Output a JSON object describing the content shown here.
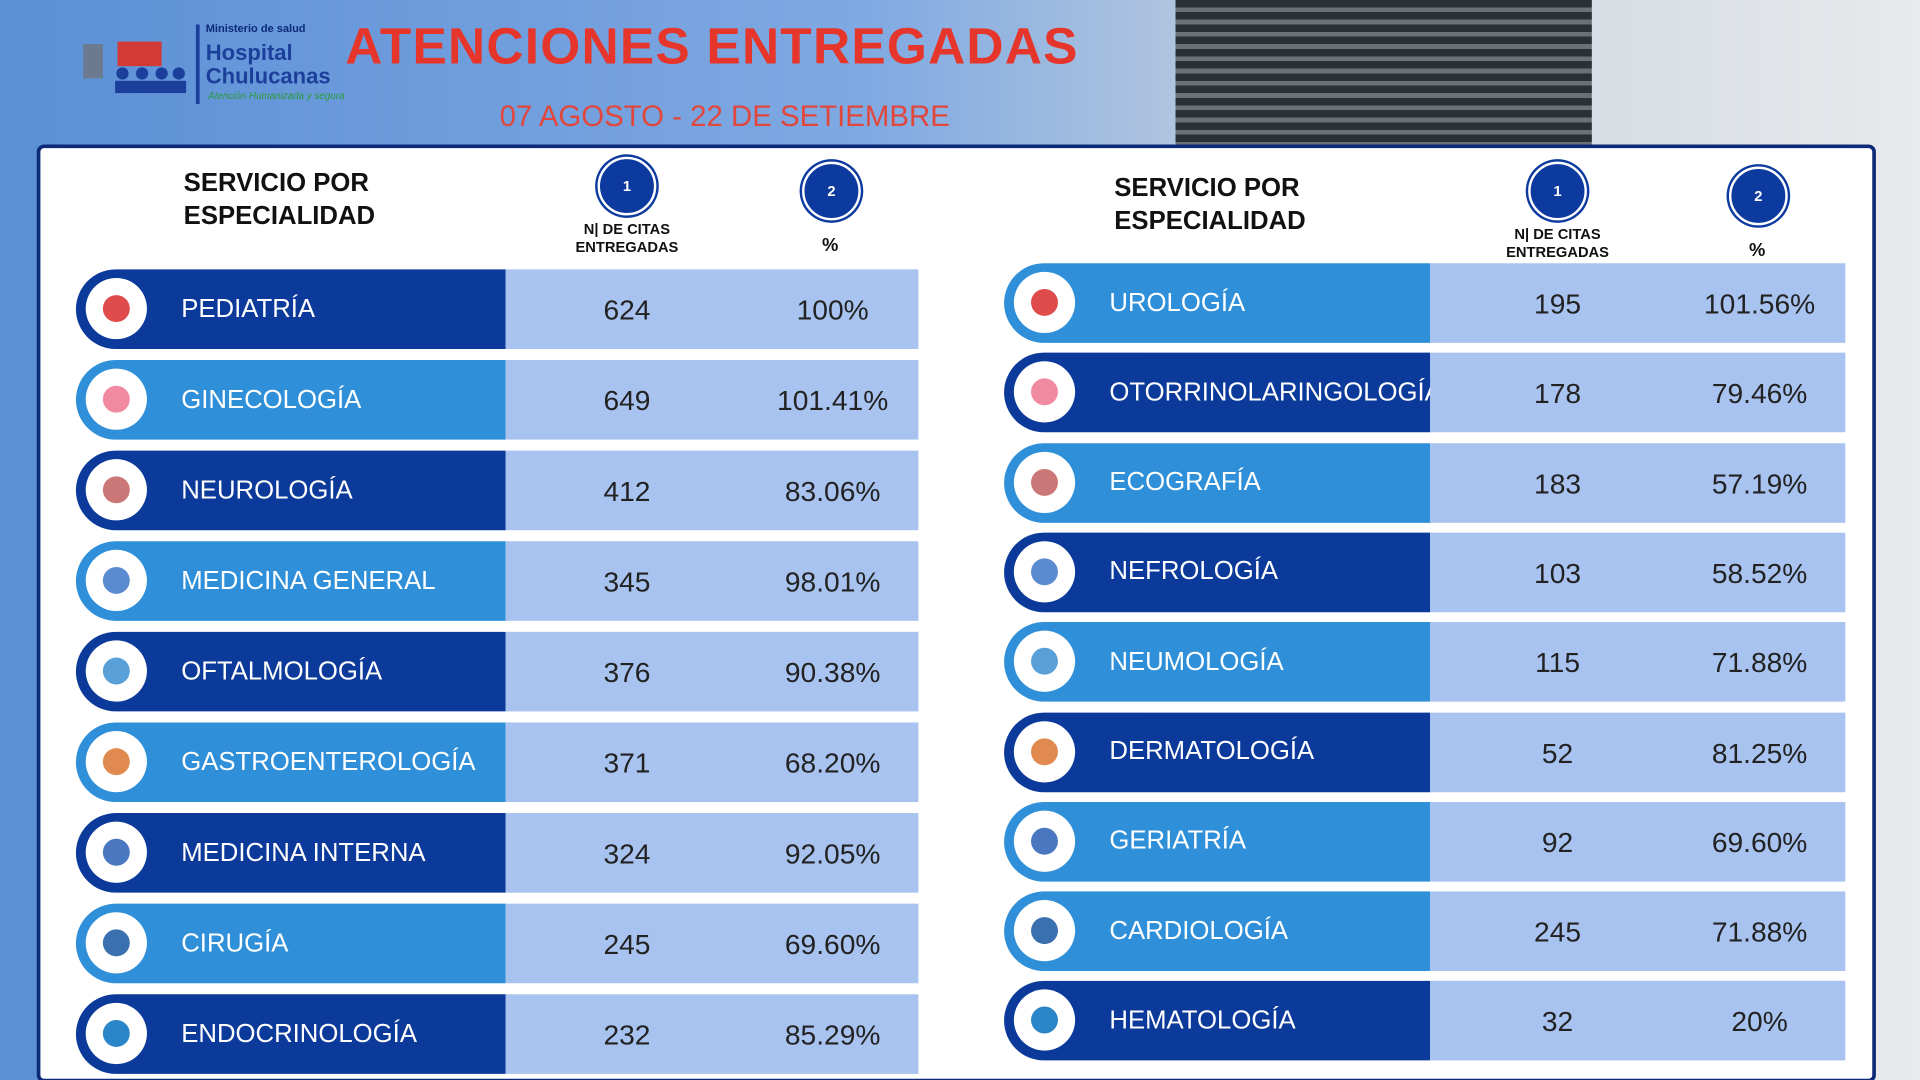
{
  "header": {
    "logo": {
      "ministry": "Ministerio de salud",
      "name_line1": "Hospital",
      "name_line2": "Chulucanas",
      "tagline": "Atención Humanizada y segura"
    },
    "title": "ATENCIONES ENTREGADAS",
    "subtitle": "07 AGOSTO - 22 DE SETIEMBRE"
  },
  "tables": [
    {
      "header": {
        "service": "SERVICIO POR ESPECIALIDAD",
        "badge1": "1",
        "badge2": "2",
        "count": "N| DE CITAS ENTREGADAS",
        "percent": "%"
      },
      "rows": [
        {
          "name": "PEDIATRÍA",
          "count": 624,
          "percent": "100%"
        },
        {
          "name": "GINECOLOGÍA",
          "count": 649,
          "percent": "101.41%"
        },
        {
          "name": "NEUROLOGÍA",
          "count": 412,
          "percent": "83.06%"
        },
        {
          "name": "MEDICINA GENERAL",
          "count": 345,
          "percent": "98.01%"
        },
        {
          "name": "OFTALMOLOGÍA",
          "count": 376,
          "percent": "90.38%"
        },
        {
          "name": "GASTROENTEROLOGÍA",
          "count": 371,
          "percent": "68.20%"
        },
        {
          "name": "MEDICINA INTERNA",
          "count": 324,
          "percent": "92.05%"
        },
        {
          "name": "CIRUGÍA",
          "count": 245,
          "percent": "69.60%"
        },
        {
          "name": "ENDOCRINOLOGÍA",
          "count": 232,
          "percent": "85.29%"
        }
      ]
    },
    {
      "header": {
        "service": "SERVICIO POR ESPECIALIDAD",
        "badge1": "1",
        "badge2": "2",
        "count": "N| DE CITAS ENTREGADAS",
        "percent": "%"
      },
      "rows": [
        {
          "name": "UROLOGÍA",
          "count": 195,
          "percent": "101.56%"
        },
        {
          "name": "OTORRINOLARINGOLOGÍA",
          "count": 178,
          "percent": "79.46%"
        },
        {
          "name": "ECOGRAFÍA",
          "count": 183,
          "percent": "57.19%"
        },
        {
          "name": "NEFROLOGÍA",
          "count": 103,
          "percent": "58.52%"
        },
        {
          "name": "NEUMOLOGÍA",
          "count": 115,
          "percent": "71.88%"
        },
        {
          "name": "DERMATOLOGÍA",
          "count": 52,
          "percent": "81.25%"
        },
        {
          "name": "GERIATRÍA",
          "count": 92,
          "percent": "69.60%"
        },
        {
          "name": "CARDIOLOGÍA",
          "count": 245,
          "percent": "71.88%"
        },
        {
          "name": "HEMATOLOGÍA",
          "count": 32,
          "percent": "20%"
        }
      ]
    }
  ]
}
